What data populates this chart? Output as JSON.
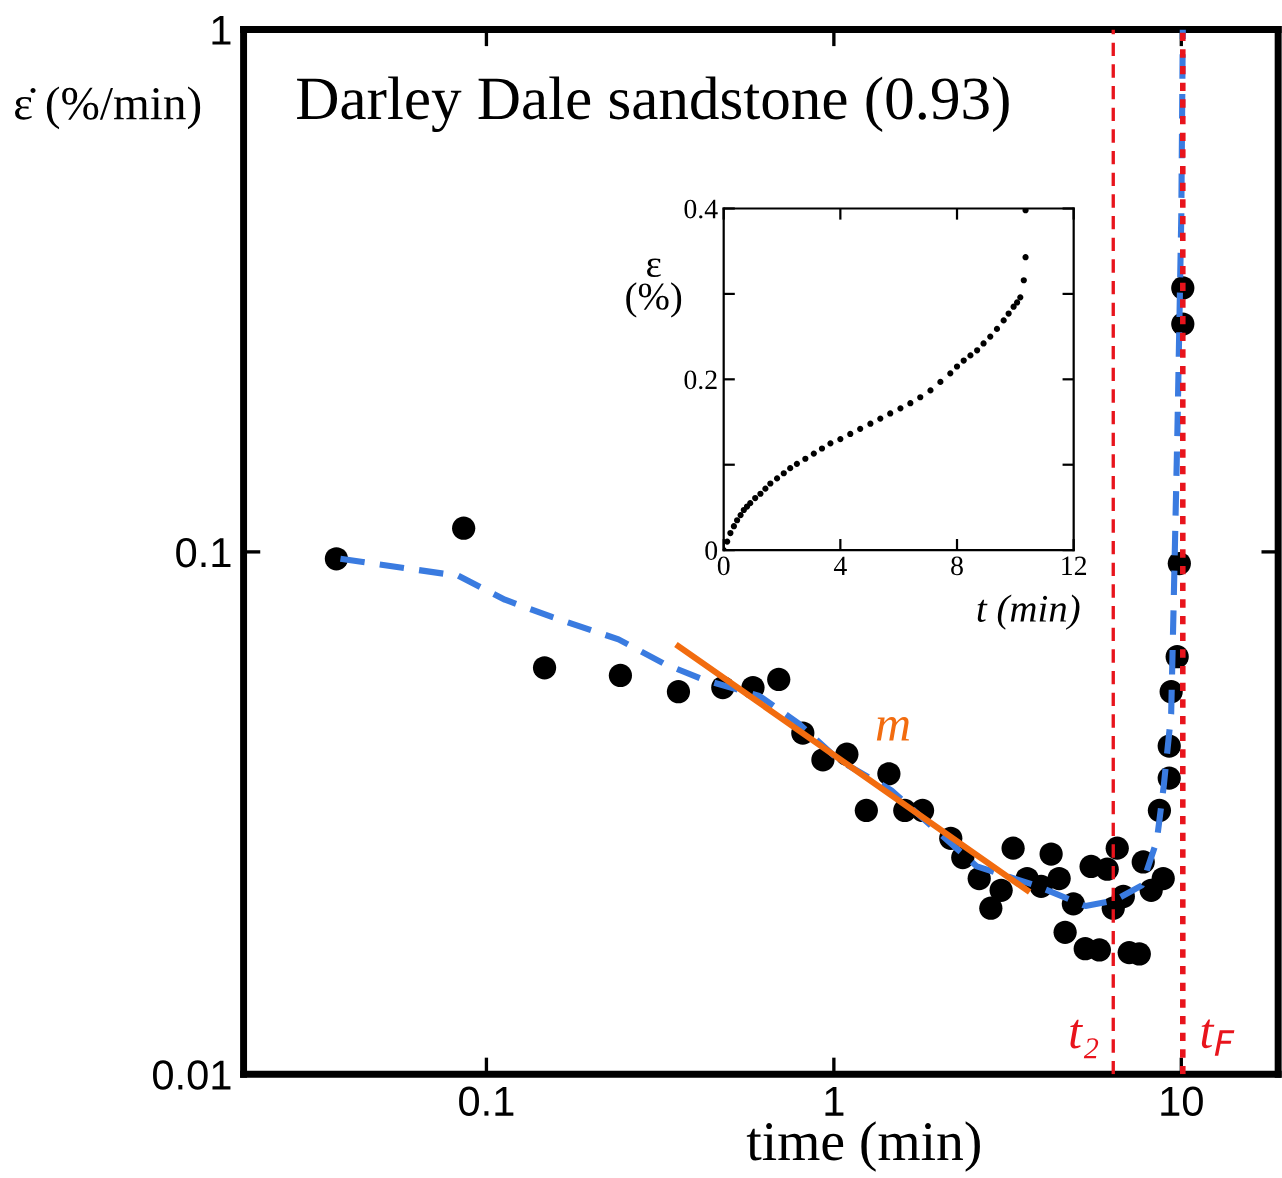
{
  "chart_data": [
    {
      "type": "scatter",
      "title": "Darley Dale sandstone (0.93)",
      "xlabel": "time (min)",
      "ylabel": "ε̇ (%/min)",
      "log": "xy",
      "xlim": [
        0.02,
        19
      ],
      "ylim": [
        0.01,
        1
      ],
      "xticks": [
        0.1,
        1,
        10
      ],
      "yticks": [
        0.01,
        0.1,
        1
      ],
      "grid": false,
      "legend": false,
      "series": [
        {
          "color": "#000000",
          "marker": "circle",
          "x": [
            0.037,
            0.086,
            0.147,
            0.243,
            0.357,
            0.479,
            0.585,
            0.694,
            0.814,
            0.93,
            1.09,
            1.24,
            1.44,
            1.6,
            1.8,
            2.17,
            2.35,
            2.62,
            2.83,
            3.03,
            3.28,
            3.6,
            3.95,
            4.22,
            4.45,
            4.63,
            4.89,
            5.29,
            5.5,
            5.81,
            6.12,
            6.37,
            6.54,
            6.81,
            7.08,
            7.57,
            7.77,
            8.19,
            8.65,
            8.87,
            9.23,
            9.23,
            9.35,
            9.73,
            9.87,
            10.1,
            10.1
          ],
          "values": [
            0.097,
            0.111,
            0.06,
            0.058,
            0.054,
            0.055,
            0.055,
            0.057,
            0.045,
            0.04,
            0.041,
            0.032,
            0.0376,
            0.032,
            0.032,
            0.0283,
            0.026,
            0.0237,
            0.0208,
            0.0225,
            0.0271,
            0.0237,
            0.0229,
            0.0264,
            0.0237,
            0.0187,
            0.0212,
            0.0174,
            0.025,
            0.0173,
            0.0247,
            0.0208,
            0.0271,
            0.0219,
            0.0171,
            0.017,
            0.0255,
            0.0225,
            0.032,
            0.0237,
            0.0369,
            0.0425,
            0.054,
            0.063,
            0.095,
            0.273,
            0.32
          ]
        },
        {
          "type": "line",
          "color": "#3a7be0",
          "line_style": "dashed",
          "marker": "none",
          "x": [
            0.038,
            0.083,
            0.113,
            0.155,
            0.24,
            0.326,
            0.42,
            0.61,
            0.79,
            1.03,
            1.46,
            2.58,
            3.8,
            5.3,
            6.4,
            7.7,
            8.5,
            8.9,
            9.35,
            9.5,
            9.75,
            10.0,
            10.1
          ],
          "values": [
            0.097,
            0.09,
            0.081,
            0.075,
            0.068,
            0.061,
            0.057,
            0.053,
            0.047,
            0.04,
            0.035,
            0.025,
            0.023,
            0.021,
            0.0215,
            0.023,
            0.028,
            0.0356,
            0.049,
            0.078,
            0.173,
            0.44,
            1.0
          ]
        },
        {
          "type": "line",
          "name": "m",
          "color": "#f26c0f",
          "line_style": "solid",
          "marker": "none",
          "x": [
            0.357,
            3.6
          ],
          "values": [
            0.066,
            0.0225
          ]
        }
      ],
      "ref_lines": [
        {
          "axis": "x",
          "value": 6.37,
          "label": "t₂",
          "color": "#e8141c",
          "line_style": "dashed"
        },
        {
          "axis": "x",
          "value": 10.1,
          "label": "t$_{F}$",
          "color": "#e8141c",
          "line_style": "dotted"
        }
      ]
    },
    {
      "type": "scatter",
      "xlabel": "t (min)",
      "ylabel": "ε\n(%)",
      "xlim": [
        0,
        12
      ],
      "ylim": [
        0,
        0.4
      ],
      "xticks": [
        0,
        4,
        8,
        12
      ],
      "yticks": [
        0,
        {
          "value": 0.1,
          "label": null
        },
        0.2,
        {
          "value": 0.3,
          "label": null
        },
        0.4
      ],
      "grid": false,
      "legend": false,
      "series": [
        {
          "color": "#000000",
          "marker": "circle",
          "x": [
            0,
            0.12,
            0.23,
            0.35,
            0.46,
            0.58,
            0.69,
            0.8,
            0.91,
            1.08,
            1.26,
            1.43,
            1.6,
            1.83,
            2.06,
            2.28,
            2.51,
            2.8,
            3.09,
            3.37,
            3.66,
            4.0,
            4.34,
            4.68,
            5.03,
            5.37,
            5.71,
            6.06,
            6.4,
            6.74,
            7.09,
            7.43,
            7.77,
            8.0,
            8.23,
            8.46,
            8.69,
            8.91,
            9.14,
            9.37,
            9.6,
            9.77,
            9.94,
            10.06,
            10.17,
            10.29,
            10.35,
            10.35
          ],
          "values": [
            0,
            0.01,
            0.02,
            0.028,
            0.035,
            0.041,
            0.047,
            0.051,
            0.055,
            0.061,
            0.066,
            0.072,
            0.078,
            0.084,
            0.09,
            0.096,
            0.101,
            0.107,
            0.113,
            0.119,
            0.125,
            0.13,
            0.136,
            0.142,
            0.148,
            0.154,
            0.16,
            0.166,
            0.172,
            0.179,
            0.187,
            0.197,
            0.207,
            0.215,
            0.222,
            0.228,
            0.234,
            0.242,
            0.25,
            0.259,
            0.269,
            0.277,
            0.285,
            0.29,
            0.296,
            0.316,
            0.343,
            0.398
          ]
        }
      ]
    }
  ]
}
